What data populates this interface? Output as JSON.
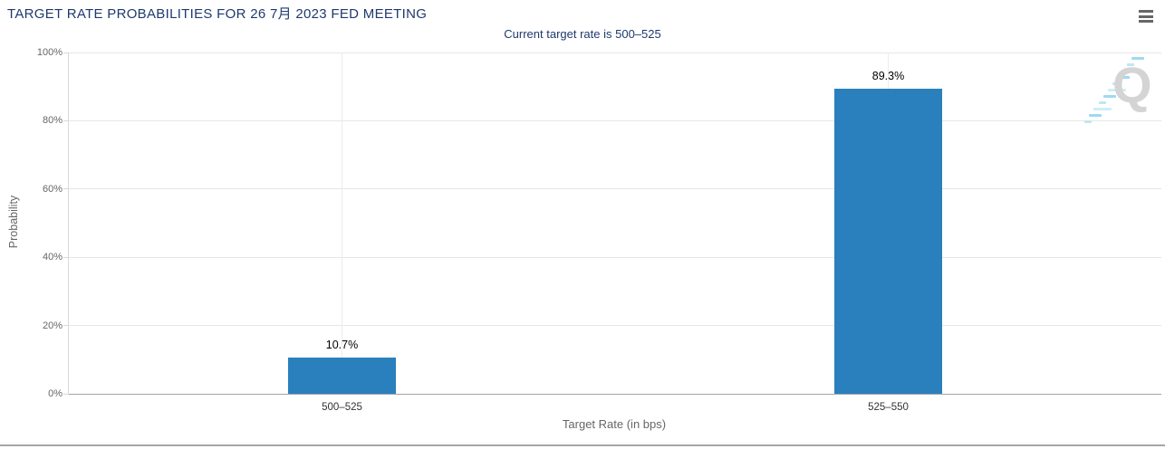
{
  "header": {
    "menu_icon": "hamburger-menu"
  },
  "colors": {
    "title": "#1e3a6d",
    "bar": "#2a80bd",
    "axis_text": "#666666",
    "bottom_divider": "#a6a6a6"
  },
  "watermark": {
    "letter": "Q"
  },
  "chart_data": {
    "type": "bar",
    "title": "TARGET RATE PROBABILITIES FOR 26 7月 2023 FED MEETING",
    "subtitle": "Current target rate is 500–525",
    "categories": [
      "500–525",
      "525–550"
    ],
    "values": [
      10.7,
      89.3
    ],
    "value_labels": [
      "10.7%",
      "89.3%"
    ],
    "xlabel": "Target Rate (in bps)",
    "ylabel": "Probability",
    "ylim": [
      0,
      100
    ],
    "yticks": [
      0,
      20,
      40,
      60,
      80,
      100
    ],
    "ytick_labels": [
      "0%",
      "20%",
      "40%",
      "60%",
      "80%",
      "100%"
    ],
    "grid": true,
    "legend": "none",
    "bar_color": "#2a80bd"
  }
}
